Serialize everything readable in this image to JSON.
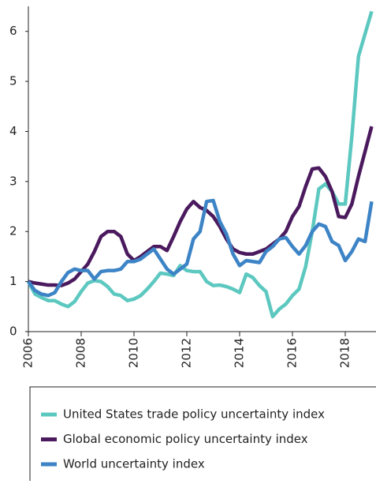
{
  "chart_data": {
    "type": "line",
    "x": [
      2006,
      2006.25,
      2006.5,
      2006.75,
      2007,
      2007.25,
      2007.5,
      2007.75,
      2008,
      2008.25,
      2008.5,
      2008.75,
      2009,
      2009.25,
      2009.5,
      2009.75,
      2010,
      2010.25,
      2010.5,
      2010.75,
      2011,
      2011.25,
      2011.5,
      2011.75,
      2012,
      2012.25,
      2012.5,
      2012.75,
      2013,
      2013.25,
      2013.5,
      2013.75,
      2014,
      2014.25,
      2014.5,
      2014.75,
      2015,
      2015.25,
      2015.5,
      2015.75,
      2016,
      2016.25,
      2016.5,
      2016.75,
      2017,
      2017.25,
      2017.5,
      2017.75,
      2018,
      2018.25,
      2018.5,
      2018.75,
      2019
    ],
    "series": [
      {
        "name": "United States trade policy uncertainty index",
        "color": "#5cc8c0",
        "values": [
          1.0,
          0.75,
          0.68,
          0.62,
          0.62,
          0.55,
          0.5,
          0.6,
          0.8,
          0.97,
          1.02,
          1.0,
          0.9,
          0.75,
          0.72,
          0.62,
          0.65,
          0.72,
          0.85,
          1.0,
          1.17,
          1.15,
          1.12,
          1.32,
          1.22,
          1.2,
          1.2,
          1.0,
          0.92,
          0.93,
          0.9,
          0.85,
          0.78,
          1.15,
          1.08,
          0.92,
          0.8,
          0.3,
          0.45,
          0.55,
          0.72,
          0.85,
          1.3,
          2.0,
          2.85,
          2.95,
          2.8,
          2.55,
          2.55,
          3.9,
          5.5,
          5.95,
          6.4
        ]
      },
      {
        "name": "Global economic policy uncertainty index",
        "color": "#4b1a5e",
        "values": [
          1.0,
          0.97,
          0.95,
          0.93,
          0.93,
          0.92,
          0.97,
          1.05,
          1.2,
          1.35,
          1.6,
          1.9,
          2.0,
          2.0,
          1.9,
          1.55,
          1.42,
          1.5,
          1.6,
          1.7,
          1.7,
          1.62,
          1.9,
          2.2,
          2.45,
          2.6,
          2.48,
          2.42,
          2.3,
          2.1,
          1.85,
          1.65,
          1.58,
          1.55,
          1.55,
          1.6,
          1.65,
          1.75,
          1.85,
          2.0,
          2.3,
          2.5,
          2.9,
          3.25,
          3.27,
          3.1,
          2.8,
          2.3,
          2.28,
          2.55,
          3.1,
          3.6,
          4.1
        ]
      },
      {
        "name": "World uncertainty index",
        "color": "#3d84c6",
        "values": [
          1.0,
          0.82,
          0.75,
          0.72,
          0.78,
          1.0,
          1.18,
          1.25,
          1.22,
          1.22,
          1.05,
          1.2,
          1.22,
          1.22,
          1.25,
          1.4,
          1.4,
          1.45,
          1.55,
          1.65,
          1.45,
          1.25,
          1.15,
          1.25,
          1.35,
          1.85,
          2.0,
          2.6,
          2.62,
          2.2,
          1.95,
          1.55,
          1.32,
          1.42,
          1.4,
          1.38,
          1.6,
          1.7,
          1.85,
          1.88,
          1.7,
          1.55,
          1.72,
          2.0,
          2.15,
          2.1,
          1.8,
          1.72,
          1.42,
          1.6,
          1.85,
          1.8,
          2.6
        ]
      }
    ],
    "xlim": [
      2006,
      2019.15
    ],
    "xticks": [
      2006,
      2008,
      2010,
      2012,
      2014,
      2016,
      2018
    ],
    "ylim": [
      0,
      6.5
    ],
    "yticks": [
      0,
      1,
      2,
      3,
      4,
      5,
      6
    ]
  }
}
